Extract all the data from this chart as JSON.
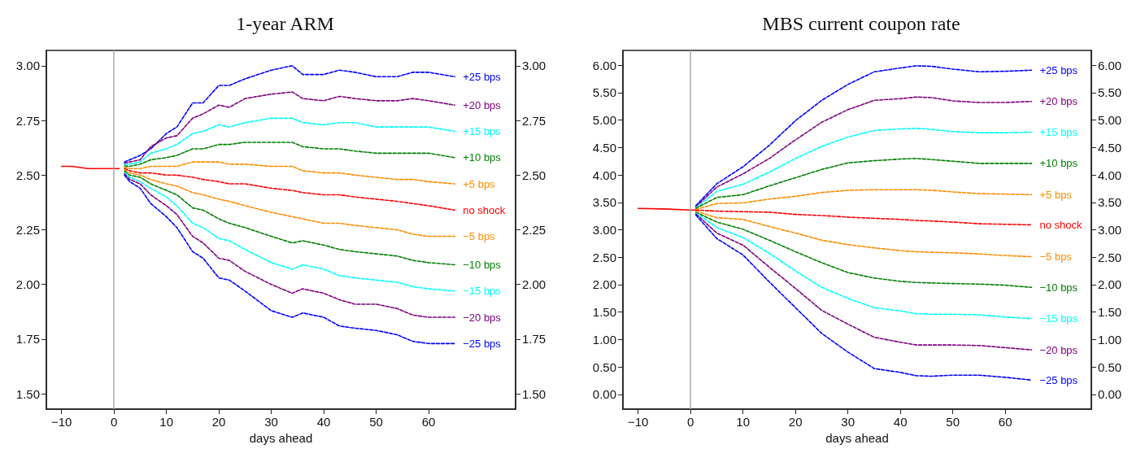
{
  "chart_data": [
    {
      "type": "line",
      "title": "1-year ARM",
      "xlabel": "days ahead",
      "legend": false,
      "grid": false,
      "marker": "none",
      "xlim": [
        -12.9,
        76.6
      ],
      "xticks": [
        {
          "value": -10,
          "label": "−10"
        },
        0,
        10,
        20,
        30,
        40,
        50,
        60
      ],
      "ylim": [
        1.43,
        3.07
      ],
      "yticks": [
        {
          "value": 1.5,
          "label": "1.50"
        },
        {
          "value": 1.75,
          "label": "1.75"
        },
        {
          "value": 2,
          "label": "2.00"
        },
        {
          "value": 2.25,
          "label": "2.25"
        },
        {
          "value": 2.5,
          "label": "2.50"
        },
        {
          "value": 2.75,
          "label": "2.75"
        },
        {
          "value": 3,
          "label": "3.00"
        }
      ],
      "y2lim": [
        1.43,
        3.07
      ],
      "y2ticks": [
        {
          "value": 1.5,
          "label": "1.50"
        },
        {
          "value": 1.75,
          "label": "1.75"
        },
        {
          "value": 2,
          "label": "2.00"
        },
        {
          "value": 2.25,
          "label": "2.25"
        },
        {
          "value": 2.5,
          "label": "2.50"
        },
        {
          "value": 2.75,
          "label": "2.75"
        },
        {
          "value": 3,
          "label": "3.00"
        }
      ],
      "ref_lines": [
        {
          "axis": "x",
          "value": 0,
          "color": "#aaaaaa"
        }
      ],
      "x": [
        2,
        3,
        5,
        7,
        10,
        12,
        15,
        17,
        20,
        22,
        25,
        30,
        34,
        36,
        40,
        43,
        46,
        50,
        54,
        57,
        60,
        65
      ],
      "series": [
        {
          "color": "#ff0000",
          "line_style": "solid",
          "x": [
            -10,
            -8,
            -5,
            -2,
            0,
            1
          ],
          "values": [
            2.54,
            2.54,
            2.53,
            2.53,
            2.53,
            2.53
          ]
        },
        {
          "name": "+25 bps",
          "color": "#0000ff",
          "line_style": "dashed",
          "values": [
            2.56,
            2.57,
            2.59,
            2.62,
            2.69,
            2.72,
            2.83,
            2.83,
            2.91,
            2.91,
            2.94,
            2.98,
            3.0,
            2.96,
            2.96,
            2.98,
            2.97,
            2.95,
            2.95,
            2.97,
            2.97,
            2.95
          ]
        },
        {
          "name": "+20 bps",
          "color": "#800080",
          "line_style": "dashed",
          "values": [
            2.554,
            2.56,
            2.57,
            2.63,
            2.67,
            2.68,
            2.76,
            2.78,
            2.82,
            2.81,
            2.85,
            2.87,
            2.88,
            2.85,
            2.84,
            2.86,
            2.85,
            2.84,
            2.84,
            2.85,
            2.84,
            2.82
          ]
        },
        {
          "name": "+15 bps",
          "color": "#00ffff",
          "line_style": "dashed",
          "values": [
            2.548,
            2.55,
            2.56,
            2.6,
            2.62,
            2.64,
            2.69,
            2.7,
            2.73,
            2.72,
            2.74,
            2.76,
            2.76,
            2.74,
            2.73,
            2.74,
            2.74,
            2.72,
            2.72,
            2.72,
            2.72,
            2.7
          ]
        },
        {
          "name": "+10 bps",
          "color": "#008000",
          "line_style": "dashed",
          "values": [
            2.542,
            2.54,
            2.55,
            2.57,
            2.58,
            2.59,
            2.62,
            2.62,
            2.64,
            2.64,
            2.65,
            2.65,
            2.65,
            2.63,
            2.62,
            2.62,
            2.61,
            2.6,
            2.6,
            2.6,
            2.6,
            2.58
          ]
        },
        {
          "name": "+5 bps",
          "color": "#ff8c00",
          "line_style": "dashed",
          "values": [
            2.536,
            2.53,
            2.53,
            2.54,
            2.54,
            2.54,
            2.56,
            2.56,
            2.56,
            2.55,
            2.55,
            2.54,
            2.54,
            2.52,
            2.51,
            2.51,
            2.5,
            2.49,
            2.48,
            2.48,
            2.47,
            2.46
          ]
        },
        {
          "name": "no shock",
          "color": "#ff0000",
          "line_style": "dashed",
          "values": [
            2.53,
            2.52,
            2.51,
            2.51,
            2.5,
            2.5,
            2.49,
            2.48,
            2.47,
            2.46,
            2.46,
            2.44,
            2.43,
            2.42,
            2.41,
            2.41,
            2.4,
            2.39,
            2.38,
            2.37,
            2.36,
            2.34
          ]
        },
        {
          "name": "−5 bps",
          "color": "#ff8c00",
          "line_style": "dashed",
          "values": [
            2.524,
            2.51,
            2.5,
            2.48,
            2.46,
            2.45,
            2.42,
            2.41,
            2.39,
            2.38,
            2.36,
            2.33,
            2.31,
            2.3,
            2.28,
            2.28,
            2.27,
            2.26,
            2.25,
            2.23,
            2.22,
            2.22
          ]
        },
        {
          "name": "−10 bps",
          "color": "#008000",
          "line_style": "dashed",
          "values": [
            2.518,
            2.5,
            2.49,
            2.46,
            2.43,
            2.41,
            2.35,
            2.34,
            2.3,
            2.28,
            2.26,
            2.22,
            2.19,
            2.2,
            2.18,
            2.16,
            2.15,
            2.14,
            2.13,
            2.11,
            2.1,
            2.09
          ]
        },
        {
          "name": "−15 bps",
          "color": "#00ffff",
          "line_style": "dashed",
          "values": [
            2.512,
            2.49,
            2.47,
            2.44,
            2.4,
            2.36,
            2.28,
            2.26,
            2.21,
            2.2,
            2.16,
            2.1,
            2.07,
            2.09,
            2.07,
            2.04,
            2.03,
            2.02,
            2.01,
            1.99,
            1.98,
            1.97
          ]
        },
        {
          "name": "−20 bps",
          "color": "#800080",
          "line_style": "dashed",
          "values": [
            2.506,
            2.48,
            2.46,
            2.41,
            2.36,
            2.32,
            2.22,
            2.19,
            2.12,
            2.11,
            2.06,
            2.0,
            1.96,
            1.98,
            1.96,
            1.93,
            1.91,
            1.91,
            1.89,
            1.86,
            1.85,
            1.85
          ]
        },
        {
          "name": "−25 bps",
          "color": "#0000ff",
          "line_style": "dashed",
          "values": [
            2.5,
            2.47,
            2.44,
            2.37,
            2.31,
            2.26,
            2.15,
            2.12,
            2.03,
            2.02,
            1.97,
            1.88,
            1.85,
            1.87,
            1.85,
            1.81,
            1.8,
            1.79,
            1.77,
            1.74,
            1.73,
            1.73
          ]
        }
      ]
    },
    {
      "type": "line",
      "title": "MBS current coupon rate",
      "xlabel": "days ahead",
      "legend": false,
      "grid": false,
      "marker": "none",
      "xlim": [
        -12.9,
        76.4
      ],
      "xticks": [
        {
          "value": -10,
          "label": "−10"
        },
        0,
        10,
        20,
        30,
        40,
        50,
        60
      ],
      "ylim": [
        -0.27,
        6.27
      ],
      "yticks": [
        {
          "value": 0,
          "label": "0.00"
        },
        {
          "value": 0.5,
          "label": "0.50"
        },
        {
          "value": 1,
          "label": "1.00"
        },
        {
          "value": 1.5,
          "label": "1.50"
        },
        {
          "value": 2,
          "label": "2.00"
        },
        {
          "value": 2.5,
          "label": "2.50"
        },
        {
          "value": 3,
          "label": "3.00"
        },
        {
          "value": 3.5,
          "label": "3.50"
        },
        {
          "value": 4,
          "label": "4.00"
        },
        {
          "value": 4.5,
          "label": "4.50"
        },
        {
          "value": 5,
          "label": "5.00"
        },
        {
          "value": 5.5,
          "label": "5.50"
        },
        {
          "value": 6,
          "label": "6.00"
        }
      ],
      "y2lim": [
        -0.27,
        6.27
      ],
      "y2ticks": [
        {
          "value": 0,
          "label": "0.00"
        },
        {
          "value": 0.5,
          "label": "0.50"
        },
        {
          "value": 1,
          "label": "1.00"
        },
        {
          "value": 1.5,
          "label": "1.50"
        },
        {
          "value": 2,
          "label": "2.00"
        },
        {
          "value": 2.5,
          "label": "2.50"
        },
        {
          "value": 3,
          "label": "3.00"
        },
        {
          "value": 3.5,
          "label": "3.50"
        },
        {
          "value": 4,
          "label": "4.00"
        },
        {
          "value": 4.5,
          "label": "4.50"
        },
        {
          "value": 5,
          "label": "5.00"
        },
        {
          "value": 5.5,
          "label": "5.50"
        },
        {
          "value": 6,
          "label": "6.00"
        }
      ],
      "ref_lines": [
        {
          "axis": "x",
          "value": 0,
          "color": "#aaaaaa"
        }
      ],
      "x": [
        1,
        5,
        10,
        15,
        20,
        25,
        30,
        35,
        40,
        43,
        46,
        50,
        55,
        60,
        65
      ],
      "series": [
        {
          "color": "#ff0000",
          "line_style": "solid",
          "x": [
            -10,
            -5,
            0,
            1
          ],
          "values": [
            3.39,
            3.38,
            3.36,
            3.36
          ]
        },
        {
          "name": "+25 bps",
          "color": "#0000ff",
          "line_style": "dashed",
          "values": [
            3.44,
            3.84,
            4.15,
            4.54,
            4.99,
            5.36,
            5.65,
            5.88,
            5.95,
            5.99,
            5.98,
            5.93,
            5.88,
            5.89,
            5.91
          ]
        },
        {
          "name": "+20 bps",
          "color": "#800080",
          "line_style": "dashed",
          "values": [
            3.42,
            3.78,
            4.02,
            4.3,
            4.64,
            4.96,
            5.19,
            5.36,
            5.39,
            5.42,
            5.41,
            5.35,
            5.32,
            5.32,
            5.34
          ]
        },
        {
          "name": "+15 bps",
          "color": "#00ffff",
          "line_style": "dashed",
          "values": [
            3.4,
            3.7,
            3.83,
            4.05,
            4.3,
            4.52,
            4.69,
            4.81,
            4.84,
            4.85,
            4.83,
            4.79,
            4.77,
            4.77,
            4.78
          ]
        },
        {
          "name": "+10 bps",
          "color": "#008000",
          "line_style": "dashed",
          "values": [
            3.39,
            3.59,
            3.64,
            3.8,
            3.95,
            4.1,
            4.22,
            4.26,
            4.29,
            4.3,
            4.28,
            4.25,
            4.21,
            4.21,
            4.21
          ]
        },
        {
          "name": "+5 bps",
          "color": "#ff8c00",
          "line_style": "dashed",
          "values": [
            3.37,
            3.48,
            3.49,
            3.56,
            3.61,
            3.68,
            3.72,
            3.73,
            3.73,
            3.73,
            3.72,
            3.69,
            3.66,
            3.65,
            3.64
          ]
        },
        {
          "name": "no shock",
          "color": "#ff0000",
          "line_style": "dashed",
          "values": [
            3.36,
            3.34,
            3.33,
            3.32,
            3.28,
            3.26,
            3.23,
            3.21,
            3.19,
            3.17,
            3.16,
            3.14,
            3.11,
            3.1,
            3.09
          ]
        },
        {
          "name": "−5 bps",
          "color": "#ff8c00",
          "line_style": "dashed",
          "values": [
            3.34,
            3.22,
            3.19,
            3.06,
            2.94,
            2.81,
            2.73,
            2.67,
            2.62,
            2.6,
            2.59,
            2.58,
            2.56,
            2.53,
            2.51
          ]
        },
        {
          "name": "−10 bps",
          "color": "#008000",
          "line_style": "dashed",
          "values": [
            3.32,
            3.14,
            3.01,
            2.81,
            2.6,
            2.4,
            2.22,
            2.12,
            2.06,
            2.04,
            2.03,
            2.02,
            2.01,
            1.99,
            1.95
          ]
        },
        {
          "name": "−15 bps",
          "color": "#00ffff",
          "line_style": "dashed",
          "values": [
            3.31,
            3.04,
            2.86,
            2.57,
            2.25,
            1.95,
            1.75,
            1.58,
            1.52,
            1.47,
            1.46,
            1.46,
            1.45,
            1.41,
            1.38
          ]
        },
        {
          "name": "−20 bps",
          "color": "#800080",
          "line_style": "dashed",
          "values": [
            3.29,
            2.94,
            2.72,
            2.32,
            1.93,
            1.53,
            1.28,
            1.04,
            0.95,
            0.9,
            0.9,
            0.9,
            0.89,
            0.85,
            0.81
          ]
        },
        {
          "name": "−25 bps",
          "color": "#0000ff",
          "line_style": "dashed",
          "values": [
            3.27,
            2.84,
            2.54,
            2.05,
            1.58,
            1.11,
            0.77,
            0.47,
            0.4,
            0.34,
            0.33,
            0.35,
            0.35,
            0.31,
            0.26
          ]
        }
      ]
    }
  ]
}
